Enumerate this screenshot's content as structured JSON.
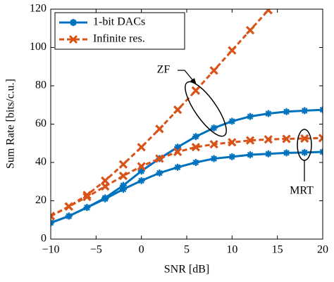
{
  "chart_data": {
    "type": "line",
    "xlabel": "SNR [dB]",
    "ylabel": "Sum Rate [bits/c.u.]",
    "x": [
      -10,
      -8,
      -6,
      -4,
      -2,
      0,
      2,
      4,
      6,
      8,
      10,
      12,
      14,
      16,
      18,
      20
    ],
    "series": [
      {
        "name": "1-bit DACs",
        "color": "#0072bd",
        "marker": "plus",
        "dashed": false,
        "values": [
          8.5,
          12,
          16.5,
          21.5,
          28,
          35.5,
          42,
          48,
          53.5,
          58,
          61.5,
          64,
          65.5,
          66.5,
          67,
          67.5
        ]
      },
      {
        "name": "1-bit DACs",
        "color": "#0072bd",
        "marker": "plus",
        "dashed": false,
        "values": [
          8.5,
          12,
          16.5,
          21,
          26,
          30.5,
          34.5,
          37.5,
          40,
          42,
          43,
          44,
          44.5,
          45,
          45.2,
          45.5
        ]
      },
      {
        "name": "Infinite res.",
        "color": "#d95319",
        "marker": "cross",
        "dashed": true,
        "values": [
          12,
          17,
          23,
          30.5,
          39,
          48,
          57.5,
          67.5,
          77.5,
          88,
          98.5,
          109,
          119.5,
          null,
          null,
          null
        ]
      },
      {
        "name": "Infinite res.",
        "color": "#d95319",
        "marker": "cross",
        "dashed": true,
        "values": [
          12,
          17,
          22,
          27.5,
          33,
          38,
          42,
          45.5,
          48,
          49.5,
          50.5,
          51.5,
          52,
          52.3,
          52.5,
          52.7
        ]
      }
    ],
    "xlim": [
      -10,
      20
    ],
    "xticks": [
      {
        "value": -10,
        "label": "−10"
      },
      {
        "value": -5,
        "label": "−5"
      },
      0,
      5,
      10,
      15,
      20
    ],
    "ylim": [
      0,
      120
    ],
    "yticks": [
      0,
      20,
      40,
      60,
      80,
      100,
      120
    ],
    "legend": "upper left",
    "annotations": [
      "ZF",
      "MRT"
    ]
  }
}
